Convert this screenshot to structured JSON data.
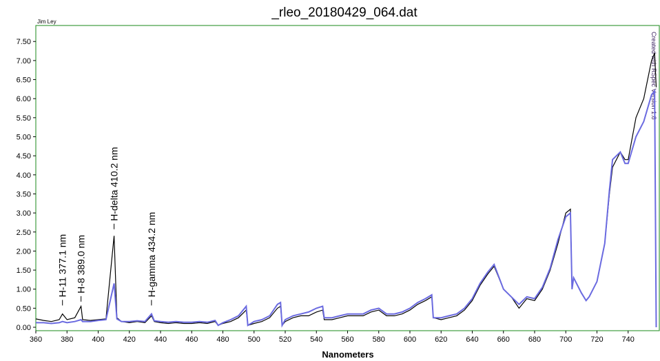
{
  "chart_data": {
    "type": "line",
    "title": "_rleo_20180429_064.dat",
    "xlabel": "Nanometers",
    "author": "Jim Ley",
    "credit": "Created with RSpec Version 1.8",
    "xlim": [
      360,
      760
    ],
    "ylim": [
      -0.09,
      7.92
    ],
    "xticks": [
      360,
      380,
      400,
      420,
      440,
      460,
      480,
      500,
      520,
      540,
      560,
      580,
      600,
      620,
      640,
      660,
      680,
      700,
      720,
      740
    ],
    "yticks": [
      {
        "value": 0,
        "label": "0.00"
      },
      {
        "value": 0.5,
        "label": "0.50"
      },
      {
        "value": 1,
        "label": "1.00"
      },
      {
        "value": 1.5,
        "label": "1.50"
      },
      {
        "value": 2,
        "label": "2.00"
      },
      {
        "value": 2.5,
        "label": "2.50"
      },
      {
        "value": 3,
        "label": "3.00"
      },
      {
        "value": 3.5,
        "label": "3.50"
      },
      {
        "value": 4,
        "label": "4.00"
      },
      {
        "value": 4.5,
        "label": "4.50"
      },
      {
        "value": 5,
        "label": "5.00"
      },
      {
        "value": 5.5,
        "label": "5.50"
      },
      {
        "value": 6,
        "label": "6.00"
      },
      {
        "value": 6.5,
        "label": "6.50"
      },
      {
        "value": 7,
        "label": "7.00"
      },
      {
        "value": 7.5,
        "label": "7.50"
      }
    ],
    "x": [
      360,
      365,
      370,
      375,
      377.1,
      380,
      385,
      389,
      390,
      395,
      400,
      405,
      410.2,
      412,
      415,
      420,
      425,
      430,
      434.2,
      436,
      440,
      445,
      450,
      455,
      460,
      465,
      470,
      475,
      477,
      480,
      485,
      490,
      495,
      496,
      500,
      505,
      510,
      515,
      517,
      518,
      520,
      525,
      530,
      535,
      540,
      544,
      545,
      550,
      555,
      560,
      565,
      570,
      575,
      580,
      585,
      590,
      595,
      600,
      605,
      610,
      614,
      615,
      620,
      625,
      630,
      635,
      640,
      645,
      650,
      654,
      660,
      665,
      670,
      675,
      680,
      685,
      690,
      695,
      700,
      703,
      704,
      705,
      710,
      713,
      715,
      720,
      725,
      728,
      730,
      735,
      738,
      740,
      745,
      750,
      755,
      757,
      758
    ],
    "series": [
      {
        "name": "Black",
        "color": "#000000",
        "values": [
          0.22,
          0.18,
          0.15,
          0.2,
          0.35,
          0.2,
          0.25,
          0.55,
          0.2,
          0.18,
          0.2,
          0.22,
          2.4,
          0.25,
          0.15,
          0.12,
          0.15,
          0.12,
          0.3,
          0.15,
          0.12,
          0.1,
          0.12,
          0.1,
          0.1,
          0.12,
          0.1,
          0.15,
          0.05,
          0.1,
          0.15,
          0.25,
          0.45,
          0.05,
          0.1,
          0.15,
          0.25,
          0.5,
          0.55,
          0.05,
          0.15,
          0.25,
          0.3,
          0.3,
          0.4,
          0.45,
          0.2,
          0.2,
          0.25,
          0.3,
          0.3,
          0.3,
          0.4,
          0.45,
          0.3,
          0.3,
          0.35,
          0.45,
          0.6,
          0.7,
          0.8,
          0.25,
          0.2,
          0.25,
          0.3,
          0.45,
          0.7,
          1.1,
          1.4,
          1.6,
          1.0,
          0.8,
          0.5,
          0.75,
          0.7,
          1.0,
          1.5,
          2.2,
          3.0,
          3.1,
          1.0,
          1.3,
          0.9,
          0.7,
          0.8,
          1.2,
          2.2,
          3.5,
          4.2,
          4.6,
          4.4,
          4.4,
          5.5,
          6.0,
          7.0,
          7.2,
          6.3
        ]
      },
      {
        "name": "Blue",
        "color": "#6a6ae0",
        "values": [
          0.12,
          0.12,
          0.1,
          0.12,
          0.15,
          0.12,
          0.15,
          0.2,
          0.15,
          0.15,
          0.18,
          0.2,
          1.15,
          0.22,
          0.15,
          0.15,
          0.17,
          0.15,
          0.35,
          0.17,
          0.15,
          0.13,
          0.15,
          0.13,
          0.13,
          0.15,
          0.13,
          0.18,
          0.05,
          0.12,
          0.2,
          0.3,
          0.55,
          0.05,
          0.15,
          0.2,
          0.3,
          0.6,
          0.65,
          0.05,
          0.2,
          0.3,
          0.35,
          0.4,
          0.5,
          0.55,
          0.25,
          0.25,
          0.3,
          0.35,
          0.35,
          0.35,
          0.45,
          0.5,
          0.35,
          0.35,
          0.4,
          0.5,
          0.65,
          0.75,
          0.85,
          0.25,
          0.25,
          0.3,
          0.35,
          0.5,
          0.75,
          1.15,
          1.45,
          1.65,
          1.0,
          0.8,
          0.6,
          0.8,
          0.75,
          1.05,
          1.55,
          2.3,
          2.9,
          3.0,
          1.0,
          1.3,
          0.9,
          0.7,
          0.8,
          1.2,
          2.2,
          3.6,
          4.4,
          4.6,
          4.3,
          4.3,
          5.0,
          5.4,
          6.1,
          6.2,
          0.0
        ]
      }
    ],
    "annotations": [
      {
        "text": "H-11 377.1 nm",
        "x": 377.1,
        "y": 0.5
      },
      {
        "text": "H-8 389.0 nm",
        "x": 389.0,
        "y": 0.6
      },
      {
        "text": "H-delta 410.2 nm",
        "x": 410.2,
        "y": 2.5
      },
      {
        "text": "H-gamma 434.2 nm",
        "x": 434.2,
        "y": 0.5
      }
    ]
  }
}
